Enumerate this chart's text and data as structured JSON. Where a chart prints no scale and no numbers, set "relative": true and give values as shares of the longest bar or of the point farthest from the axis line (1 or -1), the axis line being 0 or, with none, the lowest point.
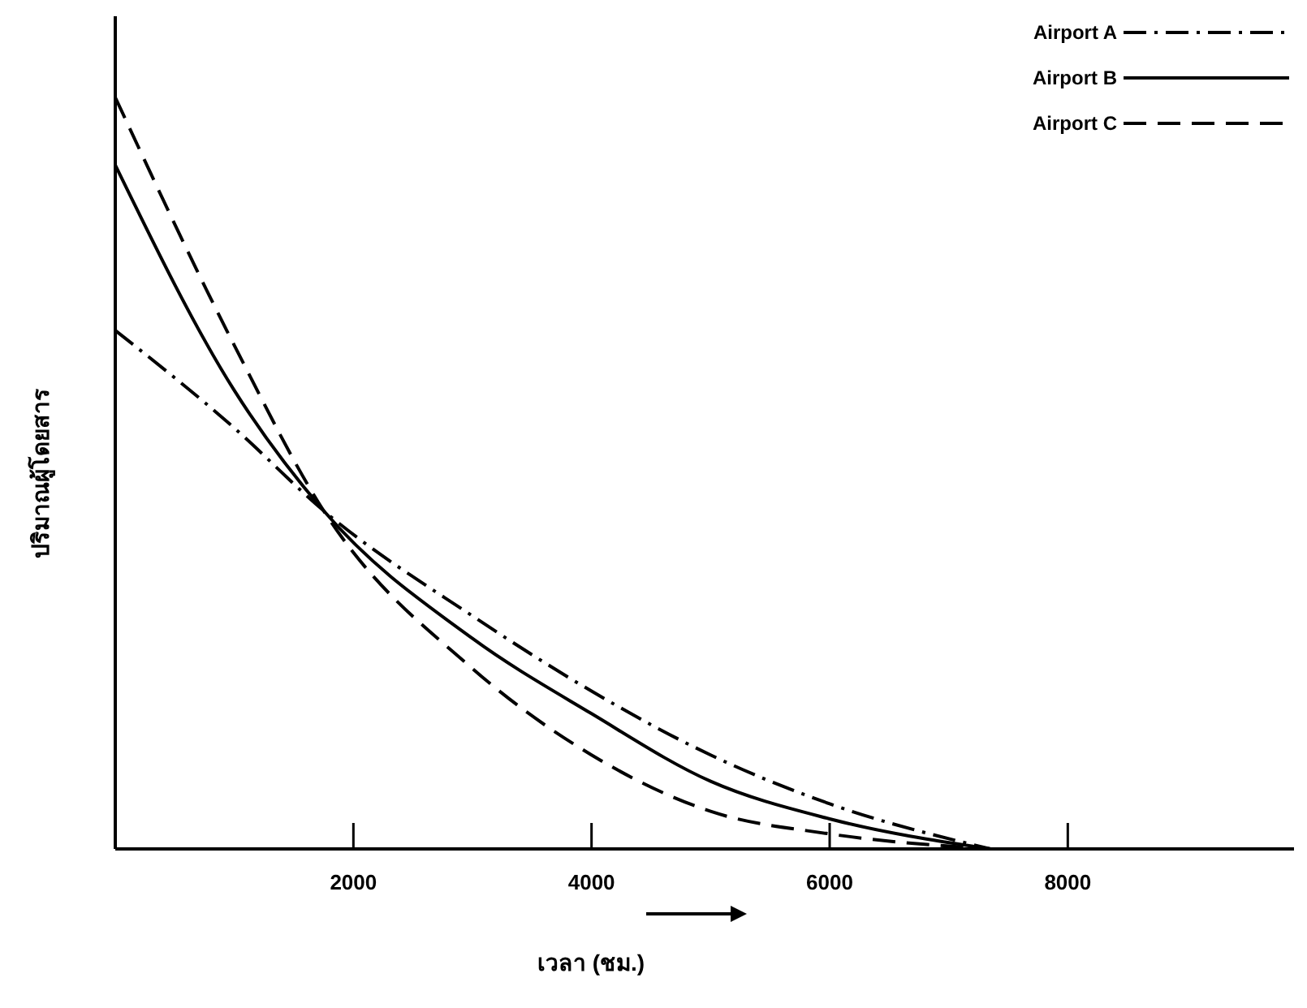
{
  "chart_data": {
    "type": "line",
    "relative": true,
    "xlabel": "เวลา (ชม.)",
    "ylabel": "ปริมาณผู้โดยสาร",
    "x": [
      0,
      1000,
      1750,
      3000,
      4000,
      5000,
      6000,
      7350
    ],
    "xlim": [
      0,
      9900
    ],
    "xticks": [
      2000,
      4000,
      6000,
      8000
    ],
    "legend": "top right",
    "grid": false,
    "series": [
      {
        "name": "Airport A",
        "color": "#000000",
        "line_style": "dashdot",
        "values": [
          0.69,
          0.56,
          0.45,
          0.31,
          0.21,
          0.125,
          0.06,
          0
        ]
      },
      {
        "name": "Airport B",
        "color": "#000000",
        "line_style": "solid",
        "values": [
          0.91,
          0.61,
          0.45,
          0.28,
          0.18,
          0.09,
          0.04,
          0
        ]
      },
      {
        "name": "Airport C",
        "color": "#000000",
        "line_style": "dashed",
        "values": [
          1,
          0.67,
          0.45,
          0.24,
          0.125,
          0.05,
          0.02,
          0
        ]
      }
    ]
  }
}
